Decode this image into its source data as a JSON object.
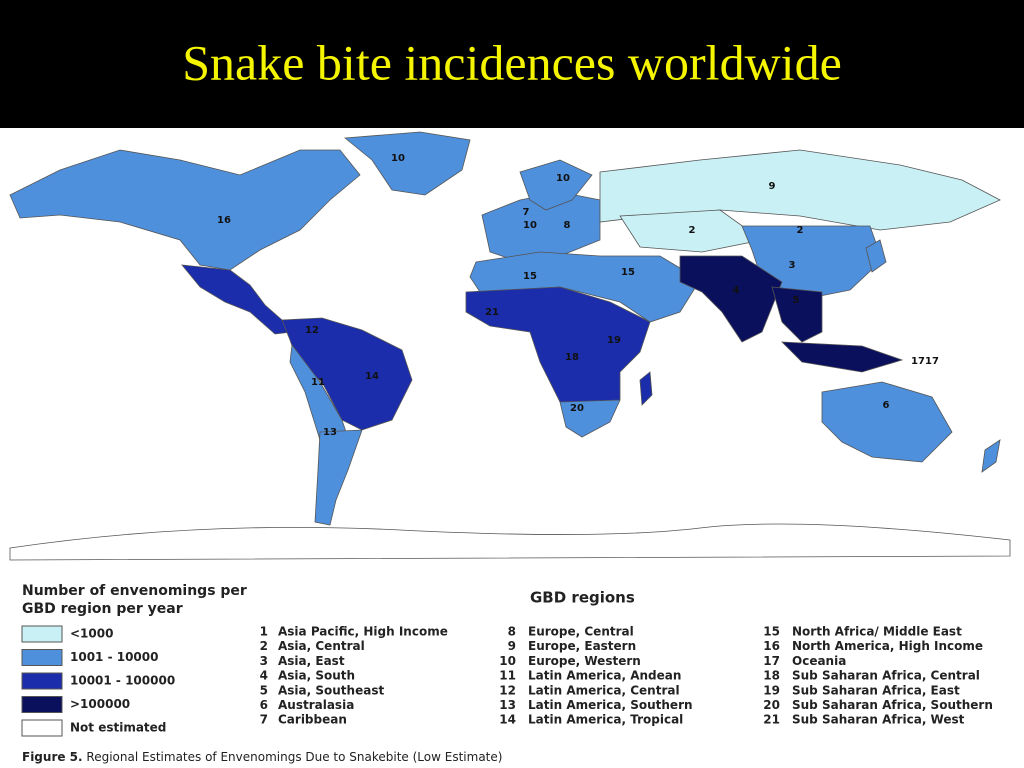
{
  "header": {
    "title": "Snake bite incidences worldwide"
  },
  "map": {
    "labels": [
      "10",
      "16",
      "10",
      "9",
      "7",
      "10",
      "8",
      "2",
      "2",
      "3",
      "15",
      "15",
      "4",
      "5",
      "21",
      "19",
      "18",
      "12",
      "11",
      "14",
      "20",
      "13",
      "6",
      "17",
      "17"
    ]
  },
  "legend": {
    "title": [
      "Number of envenomings per",
      "GBD region per year"
    ],
    "items": [
      {
        "label": "<1000",
        "color": "#c9f1f5"
      },
      {
        "label": "1001 - 10000",
        "color": "#4f90dc"
      },
      {
        "label": "10001 - 100000",
        "color": "#1b2daa"
      },
      {
        "label": ">100000",
        "color": "#0b105c"
      },
      {
        "label": "Not estimated",
        "color": "#ffffff"
      }
    ]
  },
  "regions": {
    "title": "GBD regions",
    "items": [
      {
        "number": "1",
        "name": "Asia Pacific, High Income"
      },
      {
        "number": "2",
        "name": "Asia, Central"
      },
      {
        "number": "3",
        "name": "Asia, East"
      },
      {
        "number": "4",
        "name": "Asia, South"
      },
      {
        "number": "5",
        "name": "Asia, Southeast"
      },
      {
        "number": "6",
        "name": "Australasia"
      },
      {
        "number": "7",
        "name": "Caribbean"
      },
      {
        "number": "8",
        "name": "Europe, Central"
      },
      {
        "number": "9",
        "name": "Europe, Eastern"
      },
      {
        "number": "10",
        "name": "Europe, Western"
      },
      {
        "number": "11",
        "name": "Latin America, Andean"
      },
      {
        "number": "12",
        "name": "Latin America, Central"
      },
      {
        "number": "13",
        "name": "Latin America, Southern"
      },
      {
        "number": "14",
        "name": "Latin America, Tropical"
      },
      {
        "number": "15",
        "name": "North Africa/ Middle East"
      },
      {
        "number": "16",
        "name": "North America, High Income"
      },
      {
        "number": "17",
        "name": "Oceania"
      },
      {
        "number": "18",
        "name": "Sub Saharan Africa, Central"
      },
      {
        "number": "19",
        "name": "Sub Saharan Africa, East"
      },
      {
        "number": "20",
        "name": "Sub Saharan Africa, Southern"
      },
      {
        "number": "21",
        "name": "Sub Saharan Africa, West"
      }
    ]
  },
  "caption": {
    "label": "Figure 5.",
    "text": "Regional Estimates of Envenomings Due to Snakebite (Low Estimate)"
  }
}
